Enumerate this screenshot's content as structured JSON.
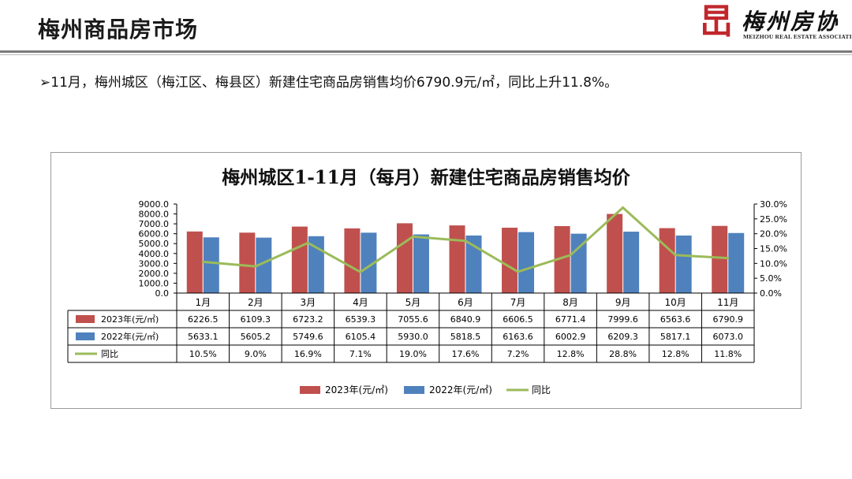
{
  "header": {
    "title": "梅州商品房市场",
    "logo_cn": "梅州房协",
    "logo_en": "MEIZHOU REAL ESTATE ASSOCIATION",
    "logo_mark": "旵"
  },
  "summary": {
    "bullet": "➢",
    "text": "11月，梅州城区（梅江区、梅县区）新建住宅商品房销售均价6790.9元/㎡，同比上升11.8%。"
  },
  "colors": {
    "bar_2023": "#c0504d",
    "bar_2022": "#4f81bd",
    "line_yoy": "#9bbb59",
    "grid": "#000000"
  },
  "chart_data": {
    "type": "bar",
    "title": "梅州城区1-11月（每月）新建住宅商品房销售均价",
    "categories": [
      "1月",
      "2月",
      "3月",
      "4月",
      "5月",
      "6月",
      "7月",
      "8月",
      "9月",
      "10月",
      "11月"
    ],
    "series": [
      {
        "name": "2023年(元/㎡)",
        "type": "bar",
        "axis": "left",
        "values": [
          6226.5,
          6109.3,
          6723.2,
          6539.3,
          7055.6,
          6840.9,
          6606.5,
          6771.4,
          7999.6,
          6563.6,
          6790.9
        ],
        "labels": [
          "6226.5",
          "6109.3",
          "6723.2",
          "6539.3",
          "7055.6",
          "6840.9",
          "6606.5",
          "6771.4",
          "7999.6",
          "6563.6",
          "6790.9"
        ]
      },
      {
        "name": "2022年(元/㎡)",
        "type": "bar",
        "axis": "left",
        "values": [
          5633.1,
          5605.2,
          5749.6,
          6105.4,
          5930.0,
          5818.5,
          6163.6,
          6002.9,
          6209.3,
          5817.1,
          6073.0
        ],
        "labels": [
          "5633.1",
          "5605.2",
          "5749.6",
          "6105.4",
          "5930.0",
          "5818.5",
          "6163.6",
          "6002.9",
          "6209.3",
          "5817.1",
          "6073.0"
        ]
      },
      {
        "name": "同比",
        "type": "line",
        "axis": "right",
        "values": [
          10.5,
          9.0,
          16.9,
          7.1,
          19.0,
          17.6,
          7.2,
          12.8,
          28.8,
          12.8,
          11.8
        ],
        "labels": [
          "10.5%",
          "9.0%",
          "16.9%",
          "7.1%",
          "19.0%",
          "17.6%",
          "7.2%",
          "12.8%",
          "28.8%",
          "12.8%",
          "11.8%"
        ]
      }
    ],
    "y_left": {
      "range": [
        0,
        9000
      ],
      "ticks": [
        "0.0",
        "1000.0",
        "2000.0",
        "3000.0",
        "4000.0",
        "5000.0",
        "6000.0",
        "7000.0",
        "8000.0",
        "9000.0"
      ]
    },
    "y_right": {
      "range": [
        0,
        30
      ],
      "unit": "%",
      "ticks": [
        "0.0%",
        "5.0%",
        "10.0%",
        "15.0%",
        "20.0%",
        "25.0%",
        "30.0%"
      ]
    },
    "data_table": true,
    "legend_position": "bottom",
    "legend": [
      "2023年(元/㎡)",
      "2022年(元/㎡)",
      "同比"
    ],
    "grid": false
  }
}
